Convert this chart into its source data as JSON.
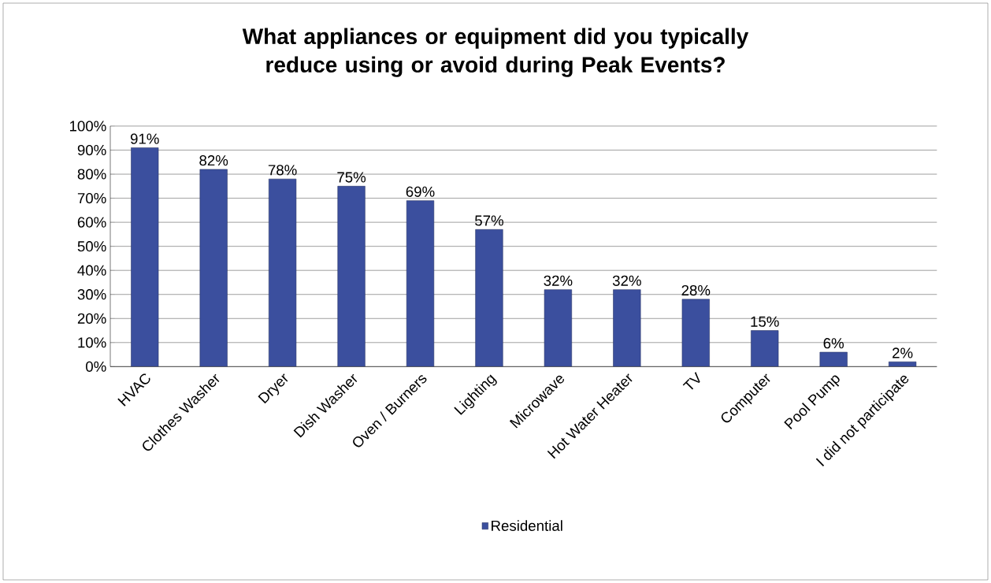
{
  "chart_data": {
    "type": "bar",
    "title": "What appliances or equipment did you typically reduce using or avoid during Peak Events?",
    "categories": [
      "HVAC",
      "Clothes Washer",
      "Dryer",
      "Dish Washer",
      "Oven / Burners",
      "Lighting",
      "Microwave",
      "Hot Water Heater",
      "TV",
      "Computer",
      "Pool Pump",
      "I did not participate"
    ],
    "series": [
      {
        "name": "Residential",
        "color": "#3b4f9e",
        "values": [
          91,
          82,
          78,
          75,
          69,
          57,
          32,
          32,
          28,
          15,
          6,
          2
        ],
        "value_labels": [
          "91%",
          "82%",
          "78%",
          "75%",
          "69%",
          "57%",
          "32%",
          "32%",
          "28%",
          "15%",
          "6%",
          "2%"
        ]
      }
    ],
    "ylim": [
      0,
      100
    ],
    "yticks": [
      {
        "value": 0,
        "label": "0%"
      },
      {
        "value": 10,
        "label": "10%"
      },
      {
        "value": 20,
        "label": "20%"
      },
      {
        "value": 30,
        "label": "30%"
      },
      {
        "value": 40,
        "label": "40%"
      },
      {
        "value": 50,
        "label": "50%"
      },
      {
        "value": 60,
        "label": "60%"
      },
      {
        "value": 70,
        "label": "70%"
      },
      {
        "value": 80,
        "label": "80%"
      },
      {
        "value": 90,
        "label": "90%"
      },
      {
        "value": 100,
        "label": "100%"
      }
    ],
    "grid": "y",
    "legend": "bottom"
  }
}
